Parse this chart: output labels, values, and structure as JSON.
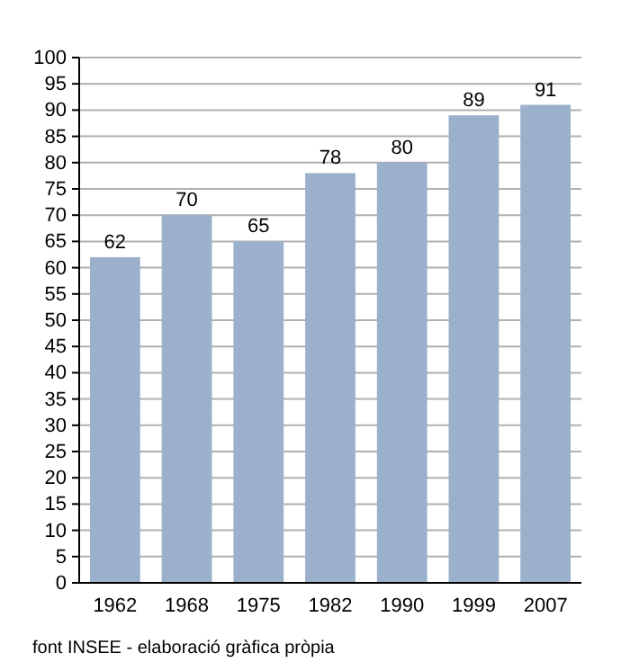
{
  "chart_data": {
    "type": "bar",
    "categories": [
      "1962",
      "1968",
      "1975",
      "1982",
      "1990",
      "1999",
      "2007"
    ],
    "values": [
      62,
      70,
      65,
      78,
      80,
      89,
      91
    ],
    "color": "#9bb0ca",
    "ylim": [
      0,
      100
    ],
    "yticks": [
      0,
      5,
      10,
      15,
      20,
      25,
      30,
      35,
      40,
      45,
      50,
      55,
      60,
      65,
      70,
      75,
      80,
      85,
      90,
      95,
      100
    ],
    "grid": "y",
    "data_labels": true,
    "annotations": [
      "font INSEE - elaboració gràfica pròpia"
    ]
  }
}
